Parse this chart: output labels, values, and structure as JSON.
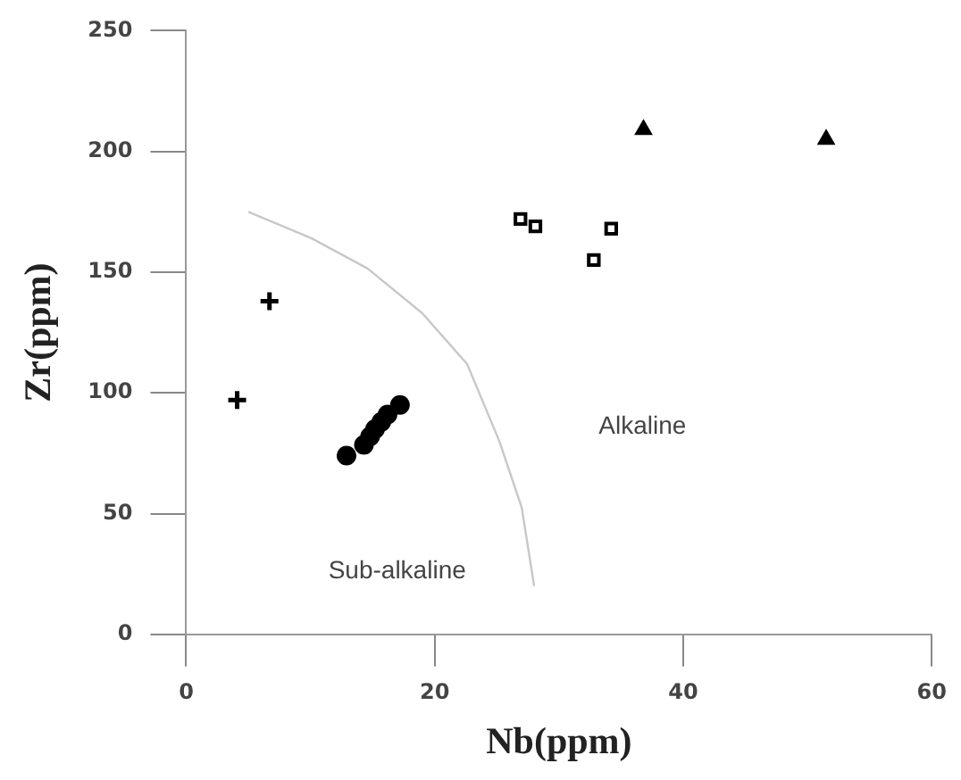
{
  "chart_data": {
    "type": "scatter",
    "xlabel": "Nb(ppm)",
    "ylabel": "Zr(ppm)",
    "xlim": [
      0,
      60
    ],
    "ylim": [
      0,
      250
    ],
    "xticks": [
      0,
      20,
      40,
      60
    ],
    "yticks": [
      0,
      50,
      100,
      150,
      200,
      250
    ],
    "grid": false,
    "legend": false,
    "annotations": [
      "Sub-alkaline",
      "Alkaline"
    ],
    "series": [
      {
        "type": "line",
        "color": "#c8c8c8",
        "marker": "none",
        "x": [
          5,
          10.1,
          14.6,
          19,
          22.6,
          25.2,
          27,
          28
        ],
        "values": [
          175,
          164,
          151.5,
          133,
          112,
          80,
          52.5,
          20
        ]
      },
      {
        "color": "#000000",
        "marker": "cross",
        "x": [
          4.1,
          6.7
        ],
        "values": [
          97,
          138
        ]
      },
      {
        "color": "#000000",
        "marker": "circle",
        "x": [
          12.9,
          14.3,
          14.8,
          15.2,
          15.7,
          16.2,
          17.2
        ],
        "values": [
          74,
          78.5,
          82,
          85,
          88,
          91,
          95
        ]
      },
      {
        "color": "#000000",
        "marker": "square",
        "x": [
          26.9,
          28.1,
          34.2,
          32.8
        ],
        "values": [
          172,
          169,
          168,
          155
        ]
      },
      {
        "color": "#000000",
        "marker": "triangle",
        "x": [
          36.8,
          51.5
        ],
        "values": [
          209,
          205
        ]
      }
    ]
  }
}
